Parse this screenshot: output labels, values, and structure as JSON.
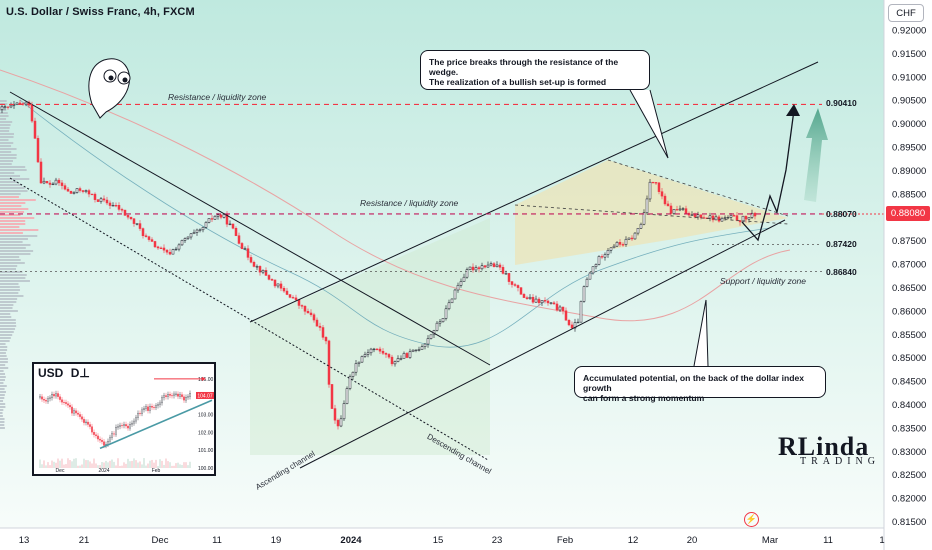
{
  "window": {
    "title": "U.S. Dollar / Swiss Franc, 4h, FXCM",
    "currency": "CHF",
    "current_price": "0.88080"
  },
  "chart_data": {
    "type": "candlestick",
    "title": "U.S. Dollar / Swiss Franc, 4h, FXCM",
    "ylim": [
      0.815,
      0.92
    ],
    "y_ticks": [
      "0.92000",
      "0.91500",
      "0.91000",
      "0.90500",
      "0.90000",
      "0.89500",
      "0.89000",
      "0.88500",
      "0.88000",
      "0.87500",
      "0.87000",
      "0.86500",
      "0.86000",
      "0.85500",
      "0.85000",
      "0.84500",
      "0.84000",
      "0.83500",
      "0.83000",
      "0.82500",
      "0.82000",
      "0.81500"
    ],
    "x_ticks": [
      "13",
      "21",
      "Dec",
      "11",
      "19",
      "2024",
      "15",
      "23",
      "Feb",
      "12",
      "20",
      "Mar",
      "11",
      "1"
    ],
    "close_path": [
      [
        0,
        0.903
      ],
      [
        18,
        0.904
      ],
      [
        28,
        0.9045
      ],
      [
        32,
        0.901
      ],
      [
        36,
        0.896
      ],
      [
        40,
        0.888
      ],
      [
        48,
        0.887
      ],
      [
        58,
        0.8875
      ],
      [
        70,
        0.885
      ],
      [
        82,
        0.886
      ],
      [
        95,
        0.884
      ],
      [
        108,
        0.883
      ],
      [
        118,
        0.882
      ],
      [
        128,
        0.88
      ],
      [
        138,
        0.878
      ],
      [
        148,
        0.875
      ],
      [
        158,
        0.8735
      ],
      [
        168,
        0.872
      ],
      [
        178,
        0.874
      ],
      [
        190,
        0.876
      ],
      [
        200,
        0.877
      ],
      [
        208,
        0.879
      ],
      [
        216,
        0.8805
      ],
      [
        224,
        0.88
      ],
      [
        234,
        0.877
      ],
      [
        244,
        0.873
      ],
      [
        254,
        0.87
      ],
      [
        264,
        0.868
      ],
      [
        274,
        0.866
      ],
      [
        284,
        0.864
      ],
      [
        292,
        0.863
      ],
      [
        300,
        0.861
      ],
      [
        310,
        0.859
      ],
      [
        318,
        0.857
      ],
      [
        326,
        0.853
      ],
      [
        330,
        0.842
      ],
      [
        334,
        0.837
      ],
      [
        338,
        0.835
      ],
      [
        342,
        0.838
      ],
      [
        346,
        0.843
      ],
      [
        352,
        0.847
      ],
      [
        360,
        0.85
      ],
      [
        372,
        0.852
      ],
      [
        384,
        0.851
      ],
      [
        392,
        0.849
      ],
      [
        400,
        0.85
      ],
      [
        412,
        0.851
      ],
      [
        424,
        0.853
      ],
      [
        434,
        0.856
      ],
      [
        444,
        0.859
      ],
      [
        454,
        0.864
      ],
      [
        462,
        0.867
      ],
      [
        470,
        0.869
      ],
      [
        480,
        0.8695
      ],
      [
        490,
        0.87
      ],
      [
        500,
        0.869
      ],
      [
        508,
        0.867
      ],
      [
        516,
        0.865
      ],
      [
        524,
        0.863
      ],
      [
        534,
        0.862
      ],
      [
        544,
        0.862
      ],
      [
        554,
        0.861
      ],
      [
        562,
        0.86
      ],
      [
        572,
        0.856
      ],
      [
        578,
        0.858
      ],
      [
        584,
        0.865
      ],
      [
        592,
        0.869
      ],
      [
        602,
        0.872
      ],
      [
        612,
        0.874
      ],
      [
        624,
        0.8745
      ],
      [
        634,
        0.876
      ],
      [
        642,
        0.879
      ],
      [
        646,
        0.883
      ],
      [
        650,
        0.888
      ],
      [
        656,
        0.887
      ],
      [
        664,
        0.883
      ],
      [
        672,
        0.881
      ],
      [
        680,
        0.882
      ],
      [
        690,
        0.88
      ],
      [
        700,
        0.8805
      ],
      [
        710,
        0.88
      ],
      [
        720,
        0.8795
      ],
      [
        730,
        0.88
      ],
      [
        740,
        0.8795
      ],
      [
        750,
        0.88
      ],
      [
        756,
        0.8808
      ]
    ],
    "levels": [
      {
        "label": "Resistance / liquidity zone",
        "value": 0.9041,
        "value_label": "0.90410",
        "style": "dashed",
        "color": "#f23645"
      },
      {
        "label": "Resistance / liquidity zone",
        "value": 0.8807,
        "value_label": "0.88070",
        "style": "dashed",
        "color": "#c2185b"
      },
      {
        "label": "",
        "value": 0.8742,
        "value_label": "0.87420",
        "style": "dotted",
        "color": "#555555"
      },
      {
        "label": "Support / liquidity zone",
        "value": 0.8684,
        "value_label": "0.86840",
        "style": "dotted",
        "color": "#555555"
      }
    ],
    "annotations": {
      "wedge_breakout": "The price breaks through the resistance of the wedge. The realization of a bullish set-up is formed",
      "dollar_index": "Accumulated potential, on the back of the dollar index growth can form a strong momentum",
      "ascending_channel": "Ascending channel",
      "descending_channel": "Descending channel"
    },
    "inset": {
      "title": "USD",
      "y_ticks": [
        "105.00",
        "104.00",
        "103.00",
        "102.00",
        "101.00",
        "100.00"
      ],
      "x_ticks": [
        "Dec",
        "2024",
        "Feb"
      ],
      "price_tag": "104.07"
    }
  },
  "callouts": {
    "top_line1": "The price breaks through the resistance of the wedge.",
    "top_line2": "The realization of a bullish set-up is formed",
    "bottom_line1": "Accumulated potential, on the back of the dollar index growth",
    "bottom_line2": "can form a strong momentum"
  },
  "labels": {
    "res_zone_top": "Resistance / liquidity zone",
    "res_zone_mid": "Resistance / liquidity zone",
    "support_zone": "Support / liquidity zone",
    "ascending": "Ascending channel",
    "descending": "Descending channel",
    "lvl_90410": "0.90410",
    "lvl_88070": "0.88070",
    "lvl_87420": "0.87420",
    "lvl_86840": "0.86840"
  },
  "inset": {
    "title": "USD",
    "title_icon": "D⊥",
    "price_tag": "104.07"
  },
  "logo": {
    "main": "RLinda",
    "sub": "TRADING"
  },
  "colors": {
    "bg_gradient_top": "#c8ede3",
    "bg_gradient_bottom": "#f6fbf9",
    "candle_up": "#131722",
    "candle_down": "#f23645",
    "resistance": "#f23645",
    "wedge_fill": "#e8e2b8",
    "arrow_green": "#6fb59a"
  }
}
